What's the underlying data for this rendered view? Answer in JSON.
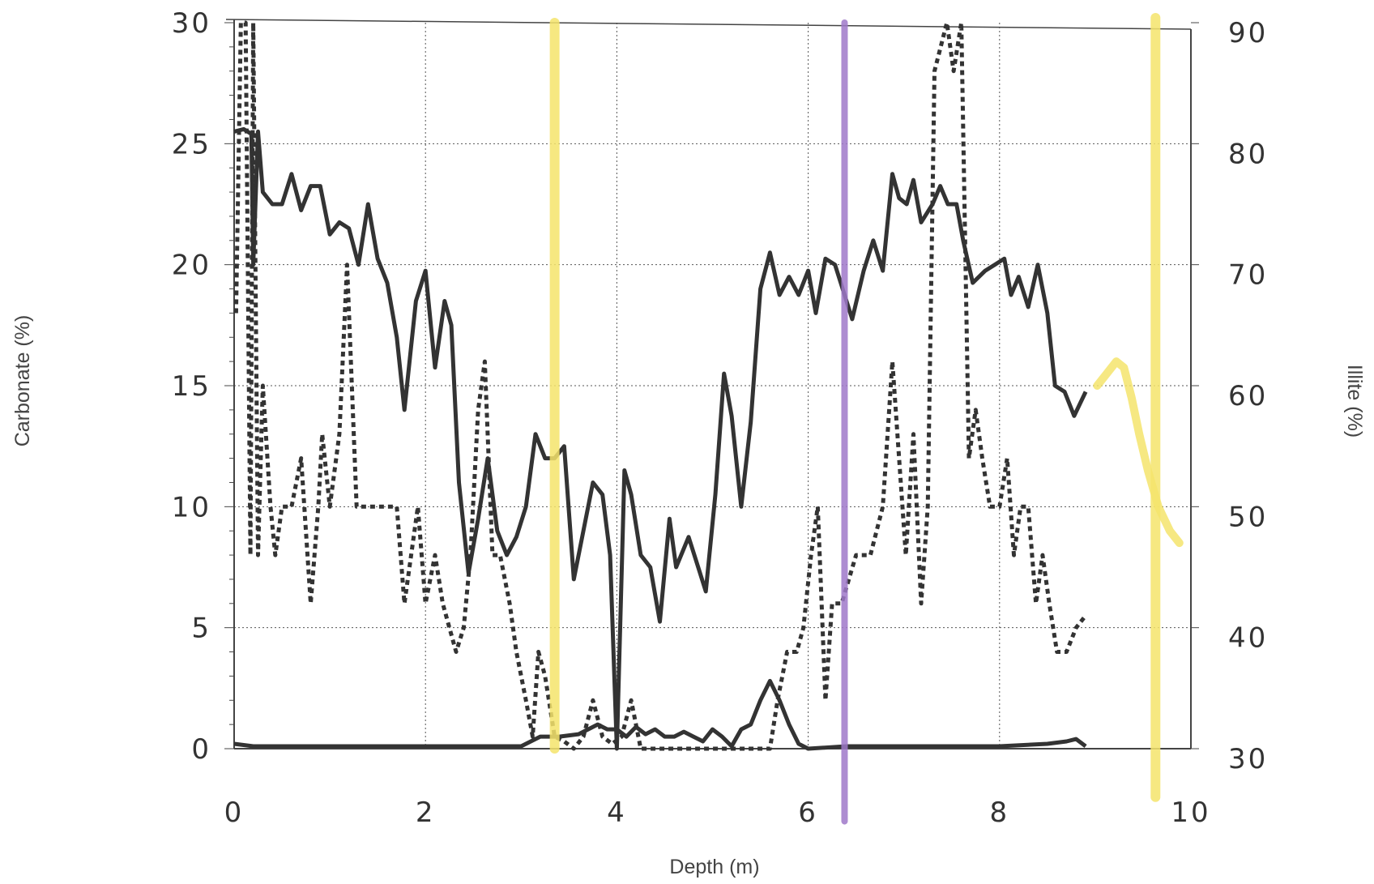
{
  "chart_data": {
    "type": "line",
    "title": "",
    "xlabel": "Depth (m)",
    "ylabel_left": "Carbonate (%)",
    "ylabel_right": "Illite (%)",
    "xlim": [
      0,
      10
    ],
    "ylim_left": [
      0,
      30
    ],
    "ylim_right": [
      30,
      90
    ],
    "grid": true,
    "legend": "none",
    "x_ticks": [
      "0",
      "2",
      "4",
      "6",
      "8",
      "10"
    ],
    "y_ticks_left": [
      "0",
      "5",
      "10",
      "15",
      "20",
      "25",
      "30"
    ],
    "y_ticks_right": [
      "30",
      "40",
      "50",
      "60",
      "70",
      "80",
      "90"
    ],
    "series": [
      {
        "style": "solid",
        "axis": "right",
        "points": [
          [
            0.0,
            81
          ],
          [
            0.1,
            81.2
          ],
          [
            0.18,
            80.8
          ],
          [
            0.2,
            70
          ],
          [
            0.25,
            81
          ],
          [
            0.3,
            76
          ],
          [
            0.4,
            75
          ],
          [
            0.5,
            75
          ],
          [
            0.6,
            77.5
          ],
          [
            0.7,
            74.5
          ],
          [
            0.8,
            76.5
          ],
          [
            0.9,
            76.5
          ],
          [
            1.0,
            72.5
          ],
          [
            1.1,
            73.5
          ],
          [
            1.2,
            73
          ],
          [
            1.3,
            70
          ],
          [
            1.4,
            75
          ],
          [
            1.5,
            70.5
          ],
          [
            1.6,
            68.5
          ],
          [
            1.7,
            64
          ],
          [
            1.78,
            58
          ],
          [
            1.9,
            67
          ],
          [
            2.0,
            69.5
          ],
          [
            2.1,
            61.5
          ],
          [
            2.2,
            67
          ],
          [
            2.27,
            65
          ],
          [
            2.35,
            52
          ],
          [
            2.45,
            44.5
          ],
          [
            2.55,
            49
          ],
          [
            2.65,
            54
          ],
          [
            2.75,
            48
          ],
          [
            2.85,
            46
          ],
          [
            2.95,
            47.5
          ],
          [
            3.05,
            50
          ],
          [
            3.15,
            56
          ],
          [
            3.25,
            54
          ],
          [
            3.35,
            54
          ],
          [
            3.45,
            55
          ],
          [
            3.55,
            44
          ],
          [
            3.65,
            48
          ],
          [
            3.75,
            52
          ],
          [
            3.85,
            51
          ],
          [
            3.93,
            46
          ],
          [
            4.0,
            30
          ],
          [
            4.08,
            53
          ],
          [
            4.15,
            51
          ],
          [
            4.25,
            46
          ],
          [
            4.35,
            45
          ],
          [
            4.45,
            40.5
          ],
          [
            4.55,
            49
          ],
          [
            4.62,
            45
          ],
          [
            4.75,
            47.5
          ],
          [
            4.85,
            45
          ],
          [
            4.93,
            43
          ],
          [
            5.03,
            51
          ],
          [
            5.12,
            61
          ],
          [
            5.2,
            57.5
          ],
          [
            5.3,
            50
          ],
          [
            5.4,
            57
          ],
          [
            5.5,
            68
          ],
          [
            5.6,
            71
          ],
          [
            5.7,
            67.5
          ],
          [
            5.8,
            69
          ],
          [
            5.9,
            67.5
          ],
          [
            6.0,
            69.5
          ],
          [
            6.08,
            66
          ],
          [
            6.18,
            70.5
          ],
          [
            6.28,
            70
          ],
          [
            6.38,
            67.5
          ],
          [
            6.46,
            65.5
          ],
          [
            6.58,
            69.5
          ],
          [
            6.68,
            72
          ],
          [
            6.78,
            69.5
          ],
          [
            6.88,
            77.5
          ],
          [
            6.95,
            75.5
          ],
          [
            7.03,
            75
          ],
          [
            7.1,
            77
          ],
          [
            7.18,
            73.5
          ],
          [
            7.3,
            75
          ],
          [
            7.38,
            76.5
          ],
          [
            7.46,
            75
          ],
          [
            7.55,
            75
          ],
          [
            7.62,
            72
          ],
          [
            7.72,
            68.5
          ],
          [
            7.85,
            69.5
          ],
          [
            7.95,
            70
          ],
          [
            8.05,
            70.5
          ],
          [
            8.12,
            67.5
          ],
          [
            8.2,
            69
          ],
          [
            8.3,
            66.5
          ],
          [
            8.4,
            70
          ],
          [
            8.5,
            66
          ],
          [
            8.58,
            60
          ],
          [
            8.68,
            59.5
          ],
          [
            8.78,
            57.5
          ],
          [
            8.9,
            59.5
          ]
        ]
      },
      {
        "style": "dashed",
        "axis": "left",
        "points": [
          [
            0.02,
            18
          ],
          [
            0.07,
            30
          ],
          [
            0.12,
            30
          ],
          [
            0.17,
            8
          ],
          [
            0.2,
            30
          ],
          [
            0.25,
            8
          ],
          [
            0.3,
            15
          ],
          [
            0.38,
            10
          ],
          [
            0.43,
            8
          ],
          [
            0.5,
            10
          ],
          [
            0.6,
            10
          ],
          [
            0.7,
            12
          ],
          [
            0.8,
            6
          ],
          [
            0.88,
            10
          ],
          [
            0.92,
            13
          ],
          [
            1.0,
            10
          ],
          [
            1.1,
            13
          ],
          [
            1.18,
            20
          ],
          [
            1.28,
            10
          ],
          [
            1.4,
            10
          ],
          [
            1.5,
            10
          ],
          [
            1.6,
            10
          ],
          [
            1.7,
            10
          ],
          [
            1.78,
            6
          ],
          [
            1.85,
            8
          ],
          [
            1.92,
            10
          ],
          [
            2.0,
            6
          ],
          [
            2.1,
            8
          ],
          [
            2.18,
            6
          ],
          [
            2.25,
            5
          ],
          [
            2.32,
            4
          ],
          [
            2.4,
            5
          ],
          [
            2.47,
            8
          ],
          [
            2.55,
            14
          ],
          [
            2.62,
            16
          ],
          [
            2.7,
            8
          ],
          [
            2.78,
            8
          ],
          [
            2.88,
            6
          ],
          [
            2.95,
            4
          ],
          [
            3.05,
            2
          ],
          [
            3.12,
            0.5
          ],
          [
            3.18,
            4
          ],
          [
            3.25,
            3
          ],
          [
            3.35,
            0.5
          ],
          [
            3.45,
            0.3
          ],
          [
            3.55,
            0
          ],
          [
            3.65,
            0.5
          ],
          [
            3.75,
            2
          ],
          [
            3.85,
            0.5
          ],
          [
            3.95,
            0.2
          ],
          [
            4.05,
            0.5
          ],
          [
            4.15,
            2
          ],
          [
            4.25,
            0
          ],
          [
            5.6,
            0
          ],
          [
            5.68,
            2
          ],
          [
            5.78,
            4
          ],
          [
            5.88,
            4
          ],
          [
            5.95,
            5
          ],
          [
            6.03,
            8
          ],
          [
            6.1,
            10
          ],
          [
            6.18,
            2
          ],
          [
            6.25,
            6
          ],
          [
            6.35,
            6
          ],
          [
            6.5,
            8
          ],
          [
            6.65,
            8
          ],
          [
            6.78,
            10
          ],
          [
            6.88,
            16
          ],
          [
            6.95,
            12
          ],
          [
            7.02,
            8
          ],
          [
            7.1,
            13
          ],
          [
            7.18,
            6
          ],
          [
            7.25,
            10
          ],
          [
            7.32,
            28
          ],
          [
            7.45,
            30
          ],
          [
            7.52,
            28
          ],
          [
            7.6,
            30
          ],
          [
            7.68,
            12
          ],
          [
            7.75,
            14
          ],
          [
            7.82,
            12
          ],
          [
            7.9,
            10
          ],
          [
            8.0,
            10
          ],
          [
            8.08,
            12
          ],
          [
            8.15,
            8
          ],
          [
            8.22,
            10
          ],
          [
            8.3,
            10
          ],
          [
            8.38,
            6
          ],
          [
            8.45,
            8
          ],
          [
            8.52,
            6
          ],
          [
            8.6,
            4
          ],
          [
            8.7,
            4
          ],
          [
            8.8,
            5
          ],
          [
            8.9,
            5.5
          ]
        ]
      },
      {
        "style": "solid",
        "axis": "left",
        "points": [
          [
            0.0,
            0.2
          ],
          [
            0.2,
            0.1
          ],
          [
            0.4,
            0.1
          ],
          [
            1.0,
            0.1
          ],
          [
            1.5,
            0.1
          ],
          [
            1.8,
            0.1
          ],
          [
            2.0,
            0.1
          ],
          [
            2.2,
            0.1
          ],
          [
            2.5,
            0.1
          ],
          [
            2.8,
            0.1
          ],
          [
            3.0,
            0.1
          ],
          [
            3.2,
            0.5
          ],
          [
            3.4,
            0.5
          ],
          [
            3.6,
            0.6
          ],
          [
            3.8,
            1.0
          ],
          [
            3.9,
            0.8
          ],
          [
            4.0,
            0.8
          ],
          [
            4.1,
            0.5
          ],
          [
            4.2,
            0.9
          ],
          [
            4.3,
            0.6
          ],
          [
            4.4,
            0.8
          ],
          [
            4.5,
            0.5
          ],
          [
            4.6,
            0.5
          ],
          [
            4.7,
            0.7
          ],
          [
            4.8,
            0.5
          ],
          [
            4.9,
            0.3
          ],
          [
            5.0,
            0.8
          ],
          [
            5.1,
            0.5
          ],
          [
            5.2,
            0.1
          ],
          [
            5.3,
            0.8
          ],
          [
            5.4,
            1.0
          ],
          [
            5.5,
            2.0
          ],
          [
            5.6,
            2.8
          ],
          [
            5.7,
            2.0
          ],
          [
            5.8,
            1.0
          ],
          [
            5.9,
            0.2
          ],
          [
            6.0,
            0.0
          ],
          [
            6.4,
            0.1
          ],
          [
            6.6,
            0.1
          ],
          [
            7.5,
            0.1
          ],
          [
            8.0,
            0.1
          ],
          [
            8.5,
            0.2
          ],
          [
            8.7,
            0.3
          ],
          [
            8.8,
            0.4
          ],
          [
            8.9,
            0.1
          ]
        ]
      }
    ],
    "highlight_marks": [
      {
        "color": "#f5e46c",
        "x": 3.35,
        "y_top": 30,
        "y_bottom": 0,
        "shape": "vertical-line"
      },
      {
        "color": "#9f79c9",
        "x": 6.38,
        "y_top": 30,
        "y_bottom": -3,
        "shape": "vertical-line"
      },
      {
        "color": "#f5e46c",
        "x": 9.63,
        "y_top": 30.2,
        "y_bottom": -2,
        "shape": "vertical-line"
      },
      {
        "color": "#f5e46c",
        "axis": "right",
        "shape": "curve",
        "points": [
          [
            9.02,
            60
          ],
          [
            9.12,
            61
          ],
          [
            9.22,
            62
          ],
          [
            9.3,
            61.5
          ],
          [
            9.38,
            59
          ],
          [
            9.46,
            56
          ],
          [
            9.55,
            53
          ],
          [
            9.66,
            50
          ],
          [
            9.78,
            48
          ],
          [
            9.88,
            47
          ]
        ]
      }
    ]
  },
  "colors": {
    "line": "#333333",
    "grid": "#555555",
    "highlighter_yellow": "#f5e46c",
    "highlighter_purple": "#9f79c9"
  }
}
